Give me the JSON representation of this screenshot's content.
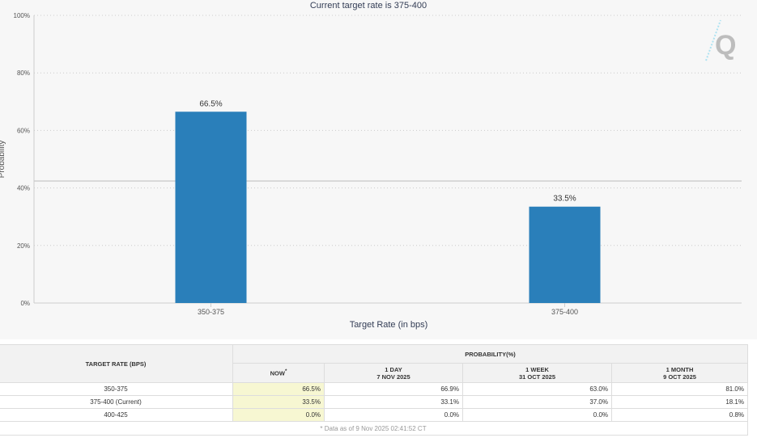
{
  "chart_data": {
    "type": "bar",
    "title": "Current target rate is 375-400",
    "xlabel": "Target Rate (in bps)",
    "ylabel": "Probability",
    "categories": [
      "350-375",
      "375-400"
    ],
    "values": [
      66.5,
      33.5
    ],
    "data_labels": [
      "66.5%",
      "33.5%"
    ],
    "ylim": [
      0,
      100
    ],
    "yticks": [
      "0%",
      "20%",
      "40%",
      "60%",
      "80%",
      "100%"
    ],
    "grid": true,
    "bar_color": "#2a7fba"
  },
  "table": {
    "col_header": "TARGET RATE (BPS)",
    "group_header": "PROBABILITY(%)",
    "periods": [
      {
        "label": "NOW",
        "sup": "*",
        "date": ""
      },
      {
        "label": "1 DAY",
        "date": "7 NOV 2025"
      },
      {
        "label": "1 WEEK",
        "date": "31 OCT 2025"
      },
      {
        "label": "1 MONTH",
        "date": "9 OCT 2025"
      }
    ],
    "rows": [
      {
        "rate": "350-375",
        "values": [
          "66.5%",
          "66.9%",
          "63.0%",
          "81.0%"
        ]
      },
      {
        "rate": "375-400 (Current)",
        "values": [
          "33.5%",
          "33.1%",
          "37.0%",
          "18.1%"
        ]
      },
      {
        "rate": "400-425",
        "values": [
          "0.0%",
          "0.0%",
          "0.0%",
          "0.8%"
        ]
      }
    ],
    "footnote": "* Data as of 9 Nov 2025 02:41:52 CT"
  }
}
